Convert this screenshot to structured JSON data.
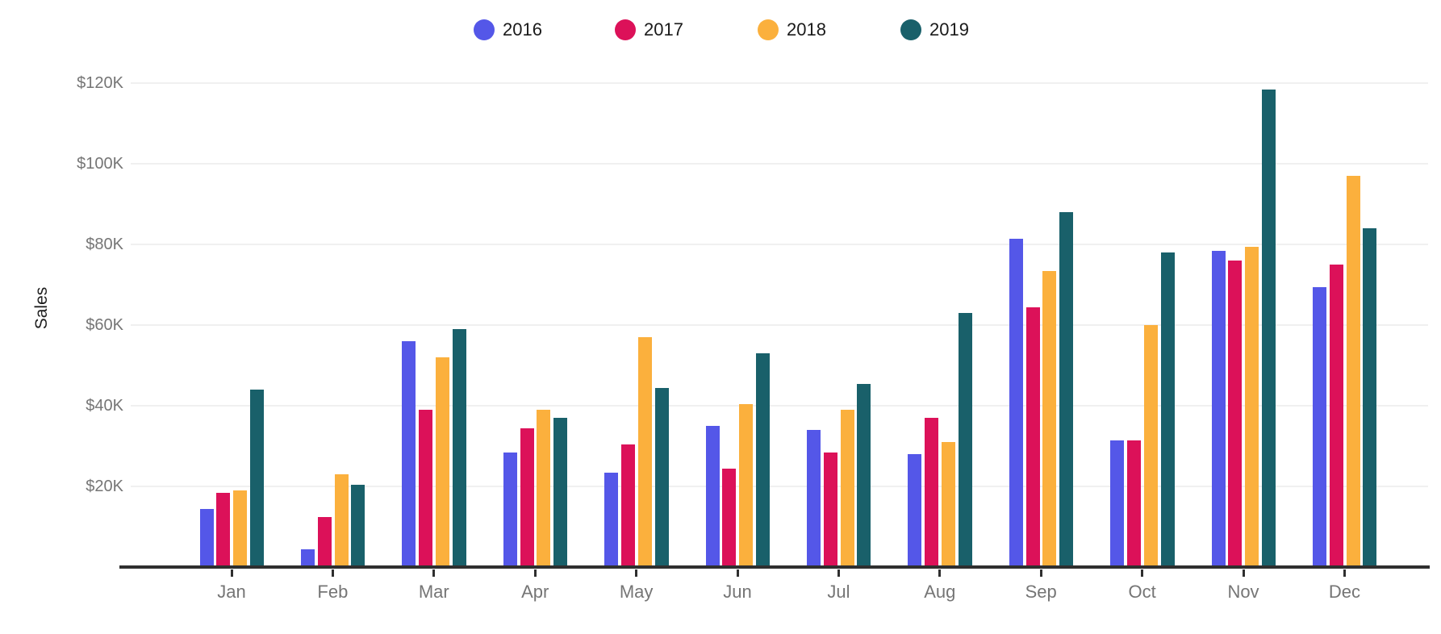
{
  "legend": {
    "items": [
      {
        "label": "2016",
        "color": "#5457e8"
      },
      {
        "label": "2017",
        "color": "#dc1159"
      },
      {
        "label": "2018",
        "color": "#fbb03d"
      },
      {
        "label": "2019",
        "color": "#19606a"
      }
    ]
  },
  "chart_data": {
    "type": "bar",
    "title": "",
    "ylabel": "Sales",
    "xlabel": "",
    "value_unit": "thousands of dollars (K)",
    "ylim": [
      0,
      125
    ],
    "grid": "horizontal gridlines on",
    "legend_position": "top center",
    "categories": [
      "Jan",
      "Feb",
      "Mar",
      "Apr",
      "May",
      "Jun",
      "Jul",
      "Aug",
      "Sep",
      "Oct",
      "Nov",
      "Dec"
    ],
    "series": [
      {
        "name": "2016",
        "color": "#5457e8",
        "values": [
          14.5,
          4.5,
          56,
          28.5,
          23.5,
          35,
          34,
          28,
          81.5,
          31.5,
          78.5,
          69.5
        ]
      },
      {
        "name": "2017",
        "color": "#dc1159",
        "values": [
          18.5,
          12.5,
          39,
          34.5,
          30.5,
          24.5,
          28.5,
          37,
          64.5,
          31.5,
          76,
          75
        ]
      },
      {
        "name": "2018",
        "color": "#fbb03d",
        "values": [
          19,
          23,
          52,
          39,
          57,
          40.5,
          39,
          31,
          73.5,
          60,
          79.5,
          97
        ]
      },
      {
        "name": "2019",
        "color": "#19606a",
        "values": [
          44,
          20.5,
          59,
          37,
          44.5,
          53,
          45.5,
          63,
          88,
          78,
          118.5,
          84
        ]
      }
    ],
    "y_ticks": [
      {
        "label": "$20K",
        "value": 20
      },
      {
        "label": "$40K",
        "value": 40
      },
      {
        "label": "$60K",
        "value": 60
      },
      {
        "label": "$80K",
        "value": 80
      },
      {
        "label": "$100K",
        "value": 100
      },
      {
        "label": "$120K",
        "value": 120
      }
    ]
  },
  "colors": {
    "background": "#ffffff",
    "axis_line": "#2f2f2f",
    "gridline": "#f0f0f0",
    "tick_label": "#757575",
    "text_dark": "#1a1a1a"
  }
}
